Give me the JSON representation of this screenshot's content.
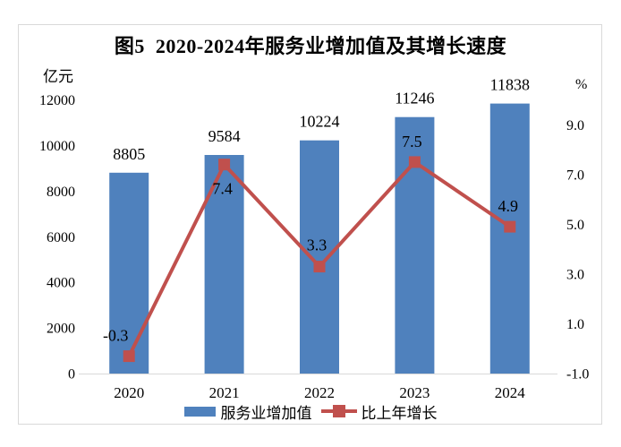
{
  "chart_data": {
    "type": "combo_bar_line",
    "title": "图5  2020-2024年服务业增加值及其增长速度",
    "categories": [
      "2020",
      "2021",
      "2022",
      "2023",
      "2024"
    ],
    "series": [
      {
        "name": "服务业增加值",
        "chart_type": "bar",
        "axis": "left",
        "color": "#4F81BD",
        "values": [
          8805,
          9584,
          10224,
          11246,
          11838
        ],
        "labels": [
          "8805",
          "9584",
          "10224",
          "11246",
          "11838"
        ]
      },
      {
        "name": "比上年增长",
        "chart_type": "line",
        "axis": "right",
        "color": "#C0504D",
        "marker": "square",
        "values": [
          -0.3,
          7.4,
          3.3,
          7.5,
          4.9
        ],
        "labels": [
          "-0.3",
          "7.4",
          "3.3",
          "7.5",
          "4.9"
        ]
      }
    ],
    "left_axis": {
      "unit": "亿元",
      "min": 0,
      "max": 12000,
      "step": 2000,
      "tick_labels": [
        "0",
        "2000",
        "4000",
        "6000",
        "8000",
        "10000",
        "12000"
      ]
    },
    "right_axis": {
      "unit": "%",
      "min": -1.0,
      "max": 10.0,
      "step": 2.0,
      "tick_labels": [
        "-1.0",
        "1.0",
        "3.0",
        "5.0",
        "7.0",
        "9.0"
      ]
    },
    "grid": false,
    "data_labels": true,
    "legend_position": "bottom",
    "colors": {
      "bar": "#4F81BD",
      "line": "#C0504D",
      "axis_line": "#D9D9D9",
      "frame_border": "#D9D9D9",
      "text": "#000000"
    }
  }
}
